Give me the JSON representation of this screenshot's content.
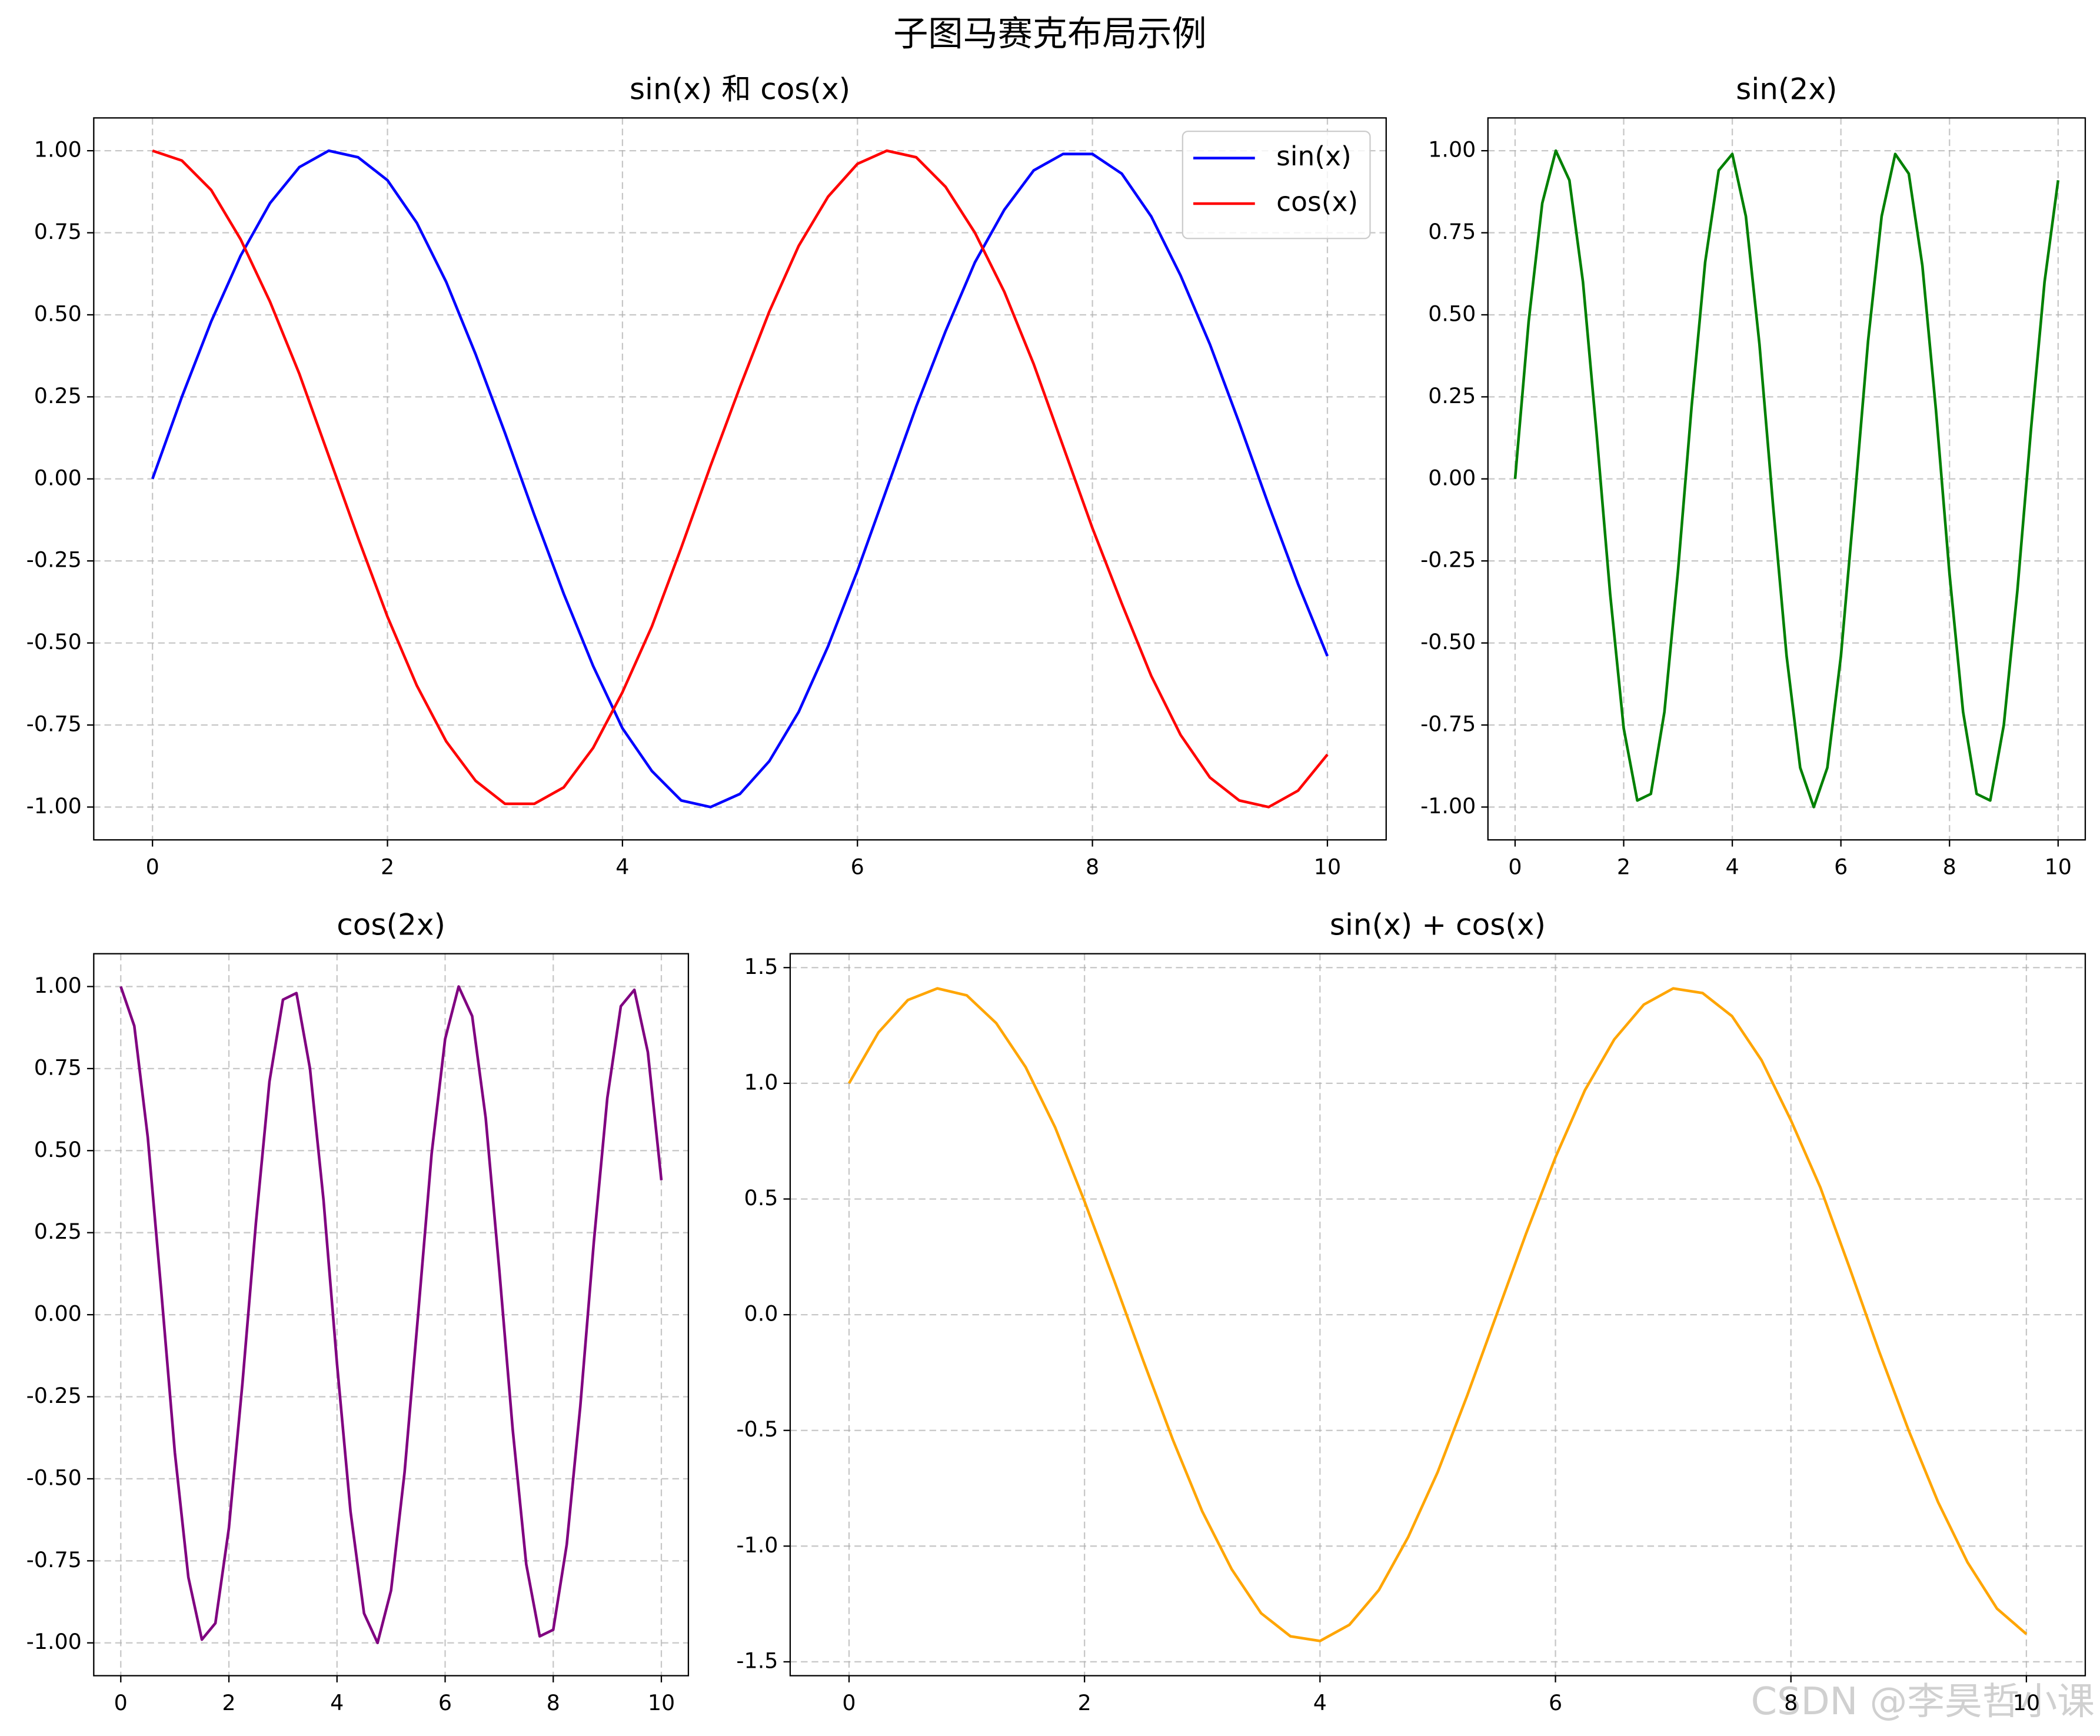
{
  "title": "子图马赛克布局示例",
  "watermark": "CSDN @李昊哲小课",
  "chart_data": [
    {
      "type": "line",
      "title": "sin(x) 和 cos(x)",
      "x": [
        0,
        0.25,
        0.5,
        0.75,
        1,
        1.25,
        1.5,
        1.75,
        2,
        2.25,
        2.5,
        2.75,
        3,
        3.25,
        3.5,
        3.75,
        4,
        4.25,
        4.5,
        4.75,
        5,
        5.25,
        5.5,
        5.75,
        6,
        6.25,
        6.5,
        6.75,
        7,
        7.25,
        7.5,
        7.75,
        8,
        8.25,
        8.5,
        8.75,
        9,
        9.25,
        9.5,
        9.75,
        10
      ],
      "series": [
        {
          "name": "sin(x)",
          "color": "#0000ff",
          "values": [
            0,
            0.25,
            0.48,
            0.68,
            0.84,
            0.95,
            1.0,
            0.98,
            0.91,
            0.78,
            0.6,
            0.38,
            0.14,
            -0.11,
            -0.35,
            -0.57,
            -0.76,
            -0.89,
            -0.98,
            -1.0,
            -0.96,
            -0.86,
            -0.71,
            -0.51,
            -0.28,
            -0.03,
            0.22,
            0.45,
            0.66,
            0.82,
            0.94,
            0.99,
            0.99,
            0.93,
            0.8,
            0.62,
            0.41,
            0.17,
            -0.08,
            -0.32,
            -0.54
          ]
        },
        {
          "name": "cos(x)",
          "color": "#ff0000",
          "values": [
            1,
            0.97,
            0.88,
            0.73,
            0.54,
            0.32,
            0.07,
            -0.18,
            -0.42,
            -0.63,
            -0.8,
            -0.92,
            -0.99,
            -0.99,
            -0.94,
            -0.82,
            -0.65,
            -0.45,
            -0.21,
            0.04,
            0.28,
            0.51,
            0.71,
            0.86,
            0.96,
            1.0,
            0.98,
            0.89,
            0.75,
            0.57,
            0.35,
            0.1,
            -0.15,
            -0.38,
            -0.6,
            -0.78,
            -0.91,
            -0.98,
            -1.0,
            -0.95,
            -0.84
          ]
        }
      ],
      "xlim": [
        -0.5,
        10.5
      ],
      "xticks": [
        0,
        2,
        4,
        6,
        8,
        10
      ],
      "ylim": [
        -1.1,
        1.1
      ],
      "yticks": [
        {
          "value": -1,
          "label": "-1.00"
        },
        {
          "value": -0.75,
          "label": "-0.75"
        },
        {
          "value": -0.5,
          "label": "-0.50"
        },
        {
          "value": -0.25,
          "label": "-0.25"
        },
        {
          "value": 0,
          "label": "0.00"
        },
        {
          "value": 0.25,
          "label": "0.25"
        },
        {
          "value": 0.5,
          "label": "0.50"
        },
        {
          "value": 0.75,
          "label": "0.75"
        },
        {
          "value": 1,
          "label": "1.00"
        }
      ],
      "grid": true,
      "legend": "upper right"
    },
    {
      "type": "line",
      "title": "sin(2x)",
      "color": "#008000",
      "x": [
        0,
        0.25,
        0.5,
        0.75,
        1,
        1.25,
        1.5,
        1.75,
        2,
        2.25,
        2.5,
        2.75,
        3,
        3.25,
        3.5,
        3.75,
        4,
        4.25,
        4.5,
        4.75,
        5,
        5.25,
        5.5,
        5.75,
        6,
        6.25,
        6.5,
        6.75,
        7,
        7.25,
        7.5,
        7.75,
        8,
        8.25,
        8.5,
        8.75,
        9,
        9.25,
        9.5,
        9.75,
        10
      ],
      "values": [
        0,
        0.48,
        0.84,
        1.0,
        0.91,
        0.6,
        0.14,
        -0.35,
        -0.76,
        -0.98,
        -0.96,
        -0.71,
        -0.28,
        0.22,
        0.66,
        0.94,
        0.99,
        0.8,
        0.41,
        -0.08,
        -0.54,
        -0.88,
        -1.0,
        -0.88,
        -0.54,
        -0.07,
        0.42,
        0.8,
        0.99,
        0.93,
        0.65,
        0.21,
        -0.29,
        -0.71,
        -0.96,
        -0.98,
        -0.75,
        -0.34,
        0.15,
        0.6,
        0.91
      ],
      "xlim": [
        -0.5,
        10.5
      ],
      "xticks": [
        0,
        2,
        4,
        6,
        8,
        10
      ],
      "ylim": [
        -1.1,
        1.1
      ],
      "yticks": [
        {
          "value": -1,
          "label": "-1.00"
        },
        {
          "value": -0.75,
          "label": "-0.75"
        },
        {
          "value": -0.5,
          "label": "-0.50"
        },
        {
          "value": -0.25,
          "label": "-0.25"
        },
        {
          "value": 0,
          "label": "0.00"
        },
        {
          "value": 0.25,
          "label": "0.25"
        },
        {
          "value": 0.5,
          "label": "0.50"
        },
        {
          "value": 0.75,
          "label": "0.75"
        },
        {
          "value": 1,
          "label": "1.00"
        }
      ],
      "grid": true
    },
    {
      "type": "line",
      "title": "cos(2x)",
      "color": "#800080",
      "x": [
        0,
        0.25,
        0.5,
        0.75,
        1,
        1.25,
        1.5,
        1.75,
        2,
        2.25,
        2.5,
        2.75,
        3,
        3.25,
        3.5,
        3.75,
        4,
        4.25,
        4.5,
        4.75,
        5,
        5.25,
        5.5,
        5.75,
        6,
        6.25,
        6.5,
        6.75,
        7,
        7.25,
        7.5,
        7.75,
        8,
        8.25,
        8.5,
        8.75,
        9,
        9.25,
        9.5,
        9.75,
        10
      ],
      "values": [
        1,
        0.88,
        0.54,
        0.07,
        -0.42,
        -0.8,
        -0.99,
        -0.94,
        -0.65,
        -0.21,
        0.28,
        0.71,
        0.96,
        0.98,
        0.75,
        0.35,
        -0.15,
        -0.6,
        -0.91,
        -1.0,
        -0.84,
        -0.48,
        0.0,
        0.49,
        0.84,
        1.0,
        0.91,
        0.6,
        0.14,
        -0.35,
        -0.76,
        -0.98,
        -0.96,
        -0.7,
        -0.28,
        0.22,
        0.66,
        0.94,
        0.99,
        0.8,
        0.41
      ],
      "xlim": [
        -0.5,
        10.5
      ],
      "xticks": [
        0,
        2,
        4,
        6,
        8,
        10
      ],
      "ylim": [
        -1.1,
        1.1
      ],
      "yticks": [
        {
          "value": -1,
          "label": "-1.00"
        },
        {
          "value": -0.75,
          "label": "-0.75"
        },
        {
          "value": -0.5,
          "label": "-0.50"
        },
        {
          "value": -0.25,
          "label": "-0.25"
        },
        {
          "value": 0,
          "label": "0.00"
        },
        {
          "value": 0.25,
          "label": "0.25"
        },
        {
          "value": 0.5,
          "label": "0.50"
        },
        {
          "value": 0.75,
          "label": "0.75"
        },
        {
          "value": 1,
          "label": "1.00"
        }
      ],
      "grid": true
    },
    {
      "type": "line",
      "title": "sin(x) + cos(x)",
      "color": "#ffa500",
      "x": [
        0,
        0.25,
        0.5,
        0.75,
        1,
        1.25,
        1.5,
        1.75,
        2,
        2.25,
        2.5,
        2.75,
        3,
        3.25,
        3.5,
        3.75,
        4,
        4.25,
        4.5,
        4.75,
        5,
        5.25,
        5.5,
        5.75,
        6,
        6.25,
        6.5,
        6.75,
        7,
        7.25,
        7.5,
        7.75,
        8,
        8.25,
        8.5,
        8.75,
        9,
        9.25,
        9.5,
        9.75,
        10
      ],
      "values": [
        1.0,
        1.22,
        1.36,
        1.41,
        1.38,
        1.26,
        1.07,
        0.81,
        0.49,
        0.15,
        -0.2,
        -0.54,
        -0.85,
        -1.1,
        -1.29,
        -1.39,
        -1.41,
        -1.34,
        -1.19,
        -0.96,
        -0.68,
        -0.35,
        0.0,
        0.35,
        0.68,
        0.97,
        1.19,
        1.34,
        1.41,
        1.39,
        1.29,
        1.1,
        0.84,
        0.55,
        0.2,
        -0.16,
        -0.5,
        -0.81,
        -1.07,
        -1.27,
        -1.38
      ],
      "xlim": [
        -0.5,
        10.5
      ],
      "xticks": [
        0,
        2,
        4,
        6,
        8,
        10
      ],
      "ylim": [
        -1.56,
        1.56
      ],
      "yticks": [
        -1.5,
        {
          "value": -1,
          "label": "-1.0"
        },
        -0.5,
        {
          "value": 0,
          "label": "0.0"
        },
        0.5,
        {
          "value": 1,
          "label": "1.0"
        },
        1.5
      ],
      "grid": true
    }
  ]
}
